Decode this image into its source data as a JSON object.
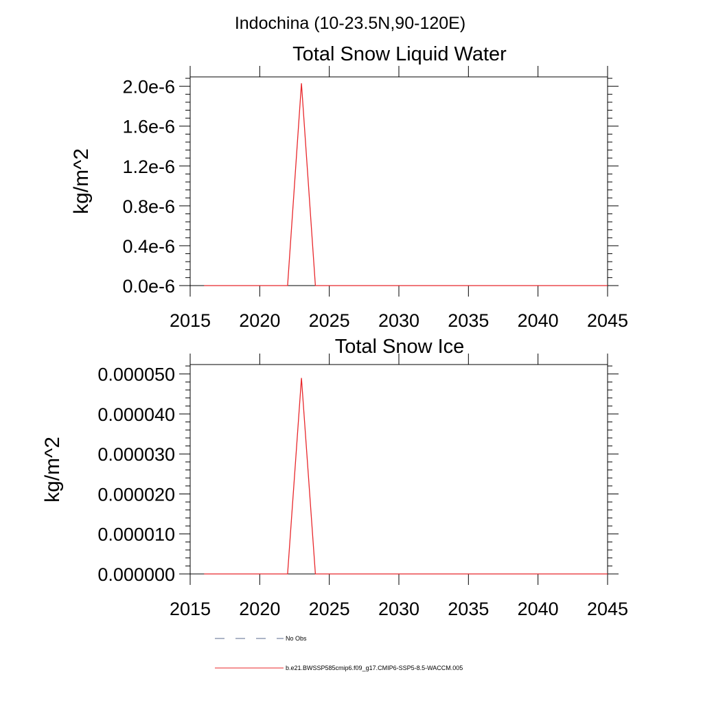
{
  "figure": {
    "title": "Indochina (10-23.5N,90-120E)"
  },
  "colors": {
    "model_line": "#e8262a",
    "obs_line": "#5a6a8c",
    "axes": "#000000",
    "background": "#ffffff"
  },
  "legend": {
    "items": [
      {
        "label": "No Obs",
        "style": "dashed",
        "color": "#5a6a8c"
      },
      {
        "label": "b.e21.BWSSP585cmip6.f09_g17.CMIP6-SSP5-8.5-WACCM.005",
        "style": "solid",
        "color": "#e8262a"
      }
    ]
  },
  "chart_data": [
    {
      "type": "line",
      "title": "Total Snow Liquid Water",
      "xlabel": "",
      "ylabel": "kg/m^2",
      "xlim": [
        2015,
        2045
      ],
      "ylim": [
        0,
        2.1e-06
      ],
      "xticks": [
        2015,
        2020,
        2025,
        2030,
        2035,
        2040,
        2045
      ],
      "xtick_labels": [
        "2015",
        "2020",
        "2025",
        "2030",
        "2035",
        "2040",
        "2045"
      ],
      "yticks": [
        0,
        4e-07,
        8e-07,
        1.2e-06,
        1.6e-06,
        2e-06
      ],
      "ytick_labels": [
        "0.0e-6",
        "0.4e-6",
        "0.8e-6",
        "1.2e-6",
        "1.6e-6",
        "2.0e-6"
      ],
      "grid": false,
      "series": [
        {
          "name": "b.e21.BWSSP585cmip6.f09_g17.CMIP6-SSP5-8.5-WACCM.005",
          "x": [
            2016,
            2022,
            2023,
            2024,
            2045
          ],
          "y": [
            0,
            0,
            2.03e-06,
            0,
            0
          ]
        }
      ]
    },
    {
      "type": "line",
      "title": "Total Snow Ice",
      "xlabel": "",
      "ylabel": "kg/m^2",
      "xlim": [
        2015,
        2045
      ],
      "ylim": [
        0,
        5e-05
      ],
      "xticks": [
        2015,
        2020,
        2025,
        2030,
        2035,
        2040,
        2045
      ],
      "xtick_labels": [
        "2015",
        "2020",
        "2025",
        "2030",
        "2035",
        "2040",
        "2045"
      ],
      "yticks": [
        0,
        1e-05,
        2e-05,
        3e-05,
        4e-05,
        5e-05
      ],
      "ytick_labels": [
        "0.000000",
        "0.000010",
        "0.000020",
        "0.000030",
        "0.000040",
        "0.000050"
      ],
      "grid": false,
      "series": [
        {
          "name": "b.e21.BWSSP585cmip6.f09_g17.CMIP6-SSP5-8.5-WACCM.005",
          "x": [
            2016,
            2022,
            2023,
            2024,
            2045
          ],
          "y": [
            0,
            0,
            4.9e-05,
            0,
            0
          ]
        }
      ]
    }
  ]
}
